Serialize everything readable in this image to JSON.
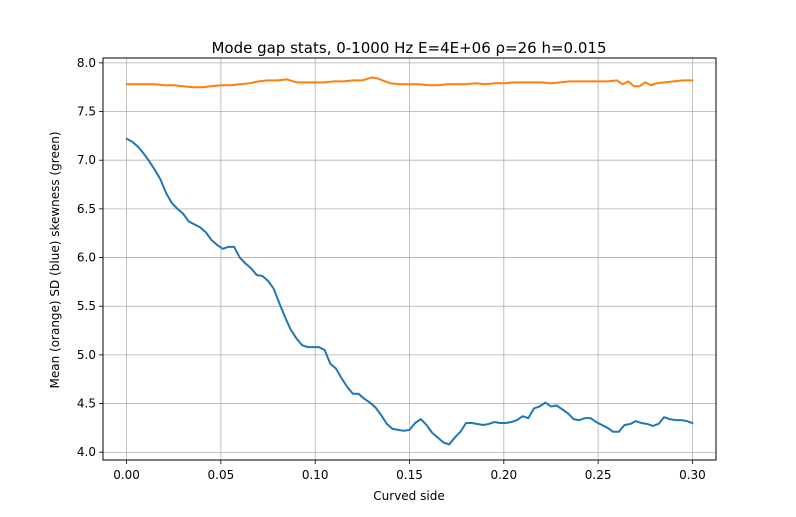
{
  "chart_data": {
    "type": "line",
    "title": "Mode gap stats, 0-1000 Hz E=4E+06 ρ=26 h=0.015",
    "xlabel": "Curved side",
    "ylabel": "Mean (orange) SD (blue) skewness (green)",
    "xlim": [
      -0.0125,
      0.3125
    ],
    "ylim": [
      3.92,
      8.05
    ],
    "grid": true,
    "x_ticks": [
      0.0,
      0.05,
      0.1,
      0.15,
      0.2,
      0.25,
      0.3
    ],
    "x_tick_labels": [
      "0.00",
      "0.05",
      "0.10",
      "0.15",
      "0.20",
      "0.25",
      "0.30"
    ],
    "y_ticks": [
      4.0,
      4.5,
      5.0,
      5.5,
      6.0,
      6.5,
      7.0,
      7.5,
      8.0
    ],
    "y_tick_labels": [
      "4.0",
      "4.5",
      "5.0",
      "5.5",
      "6.0",
      "6.5",
      "7.0",
      "7.5",
      "8.0"
    ],
    "series": [
      {
        "color": "#ff7f0e",
        "points": [
          [
            0.0,
            7.78
          ],
          [
            0.005,
            7.78
          ],
          [
            0.01,
            7.78
          ],
          [
            0.015,
            7.78
          ],
          [
            0.02,
            7.77
          ],
          [
            0.025,
            7.77
          ],
          [
            0.03,
            7.76
          ],
          [
            0.035,
            7.75
          ],
          [
            0.04,
            7.75
          ],
          [
            0.045,
            7.76
          ],
          [
            0.05,
            7.77
          ],
          [
            0.055,
            7.77
          ],
          [
            0.06,
            7.78
          ],
          [
            0.065,
            7.79
          ],
          [
            0.07,
            7.81
          ],
          [
            0.075,
            7.82
          ],
          [
            0.08,
            7.82
          ],
          [
            0.085,
            7.83
          ],
          [
            0.09,
            7.8
          ],
          [
            0.095,
            7.8
          ],
          [
            0.1,
            7.8
          ],
          [
            0.105,
            7.8
          ],
          [
            0.11,
            7.81
          ],
          [
            0.115,
            7.81
          ],
          [
            0.12,
            7.82
          ],
          [
            0.125,
            7.82
          ],
          [
            0.13,
            7.85
          ],
          [
            0.133,
            7.84
          ],
          [
            0.137,
            7.81
          ],
          [
            0.14,
            7.79
          ],
          [
            0.145,
            7.78
          ],
          [
            0.15,
            7.78
          ],
          [
            0.155,
            7.78
          ],
          [
            0.16,
            7.77
          ],
          [
            0.165,
            7.77
          ],
          [
            0.17,
            7.78
          ],
          [
            0.175,
            7.78
          ],
          [
            0.18,
            7.78
          ],
          [
            0.185,
            7.79
          ],
          [
            0.19,
            7.78
          ],
          [
            0.195,
            7.79
          ],
          [
            0.2,
            7.79
          ],
          [
            0.205,
            7.8
          ],
          [
            0.21,
            7.8
          ],
          [
            0.215,
            7.8
          ],
          [
            0.22,
            7.8
          ],
          [
            0.225,
            7.79
          ],
          [
            0.23,
            7.8
          ],
          [
            0.235,
            7.81
          ],
          [
            0.24,
            7.81
          ],
          [
            0.245,
            7.81
          ],
          [
            0.25,
            7.81
          ],
          [
            0.255,
            7.81
          ],
          [
            0.26,
            7.82
          ],
          [
            0.263,
            7.78
          ],
          [
            0.266,
            7.81
          ],
          [
            0.269,
            7.76
          ],
          [
            0.272,
            7.76
          ],
          [
            0.275,
            7.8
          ],
          [
            0.278,
            7.77
          ],
          [
            0.281,
            7.79
          ],
          [
            0.285,
            7.8
          ],
          [
            0.29,
            7.81
          ],
          [
            0.295,
            7.82
          ],
          [
            0.3,
            7.82
          ]
        ]
      },
      {
        "color": "#1f77b4",
        "points": [
          [
            0.0,
            7.22
          ],
          [
            0.003,
            7.19
          ],
          [
            0.006,
            7.14
          ],
          [
            0.009,
            7.07
          ],
          [
            0.012,
            6.99
          ],
          [
            0.015,
            6.9
          ],
          [
            0.018,
            6.8
          ],
          [
            0.021,
            6.66
          ],
          [
            0.024,
            6.56
          ],
          [
            0.027,
            6.5
          ],
          [
            0.03,
            6.45
          ],
          [
            0.033,
            6.37
          ],
          [
            0.036,
            6.34
          ],
          [
            0.039,
            6.31
          ],
          [
            0.042,
            6.26
          ],
          [
            0.045,
            6.18
          ],
          [
            0.048,
            6.13
          ],
          [
            0.051,
            6.09
          ],
          [
            0.054,
            6.11
          ],
          [
            0.057,
            6.11
          ],
          [
            0.06,
            6.0
          ],
          [
            0.063,
            5.94
          ],
          [
            0.066,
            5.89
          ],
          [
            0.069,
            5.82
          ],
          [
            0.072,
            5.81
          ],
          [
            0.075,
            5.76
          ],
          [
            0.078,
            5.68
          ],
          [
            0.081,
            5.53
          ],
          [
            0.084,
            5.39
          ],
          [
            0.087,
            5.26
          ],
          [
            0.09,
            5.17
          ],
          [
            0.093,
            5.1
          ],
          [
            0.096,
            5.08
          ],
          [
            0.099,
            5.08
          ],
          [
            0.102,
            5.08
          ],
          [
            0.105,
            5.05
          ],
          [
            0.108,
            4.91
          ],
          [
            0.111,
            4.86
          ],
          [
            0.114,
            4.76
          ],
          [
            0.117,
            4.67
          ],
          [
            0.12,
            4.6
          ],
          [
            0.123,
            4.6
          ],
          [
            0.126,
            4.55
          ],
          [
            0.129,
            4.51
          ],
          [
            0.132,
            4.46
          ],
          [
            0.135,
            4.38
          ],
          [
            0.138,
            4.29
          ],
          [
            0.141,
            4.24
          ],
          [
            0.144,
            4.23
          ],
          [
            0.147,
            4.22
          ],
          [
            0.15,
            4.23
          ],
          [
            0.153,
            4.3
          ],
          [
            0.156,
            4.34
          ],
          [
            0.159,
            4.28
          ],
          [
            0.162,
            4.2
          ],
          [
            0.165,
            4.15
          ],
          [
            0.168,
            4.1
          ],
          [
            0.171,
            4.08
          ],
          [
            0.174,
            4.15
          ],
          [
            0.177,
            4.21
          ],
          [
            0.18,
            4.3
          ],
          [
            0.183,
            4.3
          ],
          [
            0.186,
            4.29
          ],
          [
            0.189,
            4.28
          ],
          [
            0.192,
            4.29
          ],
          [
            0.195,
            4.31
          ],
          [
            0.198,
            4.3
          ],
          [
            0.201,
            4.3
          ],
          [
            0.204,
            4.31
          ],
          [
            0.207,
            4.33
          ],
          [
            0.21,
            4.37
          ],
          [
            0.213,
            4.35
          ],
          [
            0.216,
            4.45
          ],
          [
            0.219,
            4.47
          ],
          [
            0.222,
            4.51
          ],
          [
            0.225,
            4.47
          ],
          [
            0.228,
            4.48
          ],
          [
            0.231,
            4.44
          ],
          [
            0.234,
            4.4
          ],
          [
            0.237,
            4.34
          ],
          [
            0.24,
            4.33
          ],
          [
            0.243,
            4.35
          ],
          [
            0.246,
            4.35
          ],
          [
            0.249,
            4.31
          ],
          [
            0.252,
            4.28
          ],
          [
            0.255,
            4.25
          ],
          [
            0.258,
            4.21
          ],
          [
            0.261,
            4.21
          ],
          [
            0.264,
            4.28
          ],
          [
            0.267,
            4.29
          ],
          [
            0.27,
            4.32
          ],
          [
            0.273,
            4.3
          ],
          [
            0.276,
            4.29
          ],
          [
            0.279,
            4.27
          ],
          [
            0.282,
            4.29
          ],
          [
            0.285,
            4.36
          ],
          [
            0.288,
            4.34
          ],
          [
            0.291,
            4.33
          ],
          [
            0.294,
            4.33
          ],
          [
            0.297,
            4.32
          ],
          [
            0.3,
            4.3
          ]
        ]
      }
    ]
  }
}
